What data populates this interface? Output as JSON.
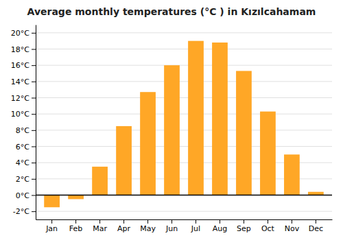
{
  "chart_data": {
    "type": "bar",
    "title": "Average monthly temperatures (°C ) in Kızılcahamam",
    "categories": [
      "Jan",
      "Feb",
      "Mar",
      "Apr",
      "May",
      "Jun",
      "Jul",
      "Aug",
      "Sep",
      "Oct",
      "Nov",
      "Dec"
    ],
    "values": [
      -1.5,
      -0.5,
      3.5,
      8.5,
      12.7,
      16.0,
      19.0,
      18.8,
      15.3,
      10.3,
      5.0,
      0.4
    ],
    "color": "#FFA726",
    "ylim": [
      -3,
      21
    ],
    "yticks": [
      {
        "value": -2,
        "label": "-2°C"
      },
      {
        "value": 0,
        "label": "0°C"
      },
      {
        "value": 2,
        "label": "2°C"
      },
      {
        "value": 4,
        "label": "4°C"
      },
      {
        "value": 6,
        "label": "6°C"
      },
      {
        "value": 8,
        "label": "8°C"
      },
      {
        "value": 10,
        "label": "10°C"
      },
      {
        "value": 12,
        "label": "12°C"
      },
      {
        "value": 14,
        "label": "14°C"
      },
      {
        "value": 16,
        "label": "16°C"
      },
      {
        "value": 18,
        "label": "18°C"
      },
      {
        "value": 20,
        "label": "20°C"
      }
    ],
    "grid": true
  }
}
